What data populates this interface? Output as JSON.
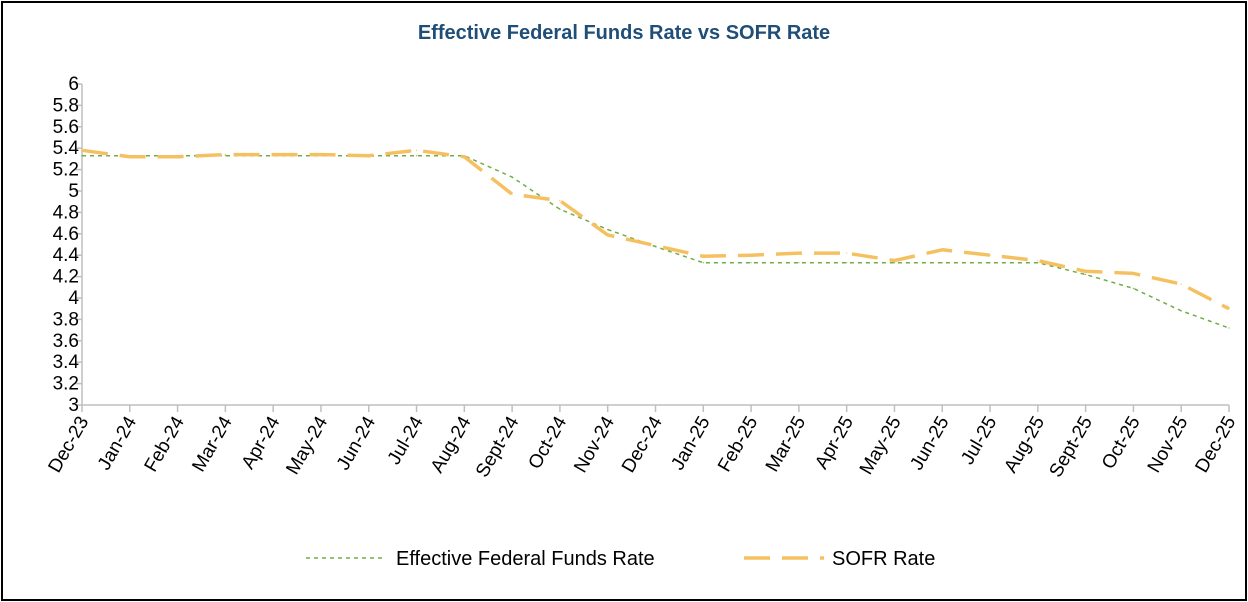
{
  "chart_data": {
    "type": "line",
    "title": "Effective Federal Funds Rate vs SOFR Rate",
    "xlabel": "",
    "ylabel": "",
    "ylim": [
      3,
      6
    ],
    "yticks": [
      "3",
      "3.2",
      "3.4",
      "3.6",
      "3.8",
      "4",
      "4.2",
      "4.4",
      "4.6",
      "4.8",
      "5",
      "5.2",
      "5.4",
      "5.6",
      "5.8",
      "6"
    ],
    "categories": [
      "Dec-23",
      "Jan-24",
      "Feb-24",
      "Mar-24",
      "Apr-24",
      "May-24",
      "Jun-24",
      "Jul-24",
      "Aug-24",
      "Sept-24",
      "Oct-24",
      "Nov-24",
      "Dec-24",
      "Jan-25",
      "Feb-25",
      "Mar-25",
      "Apr-25",
      "May-25",
      "Jun-25",
      "Jul-25",
      "Aug-25",
      "Sept-25",
      "Oct-25",
      "Nov-25",
      "Dec-25"
    ],
    "series": [
      {
        "name": "Effective Federal Funds Rate",
        "color": "#70ad47",
        "style": "dotted",
        "values": [
          5.33,
          5.33,
          5.33,
          5.33,
          5.33,
          5.33,
          5.33,
          5.33,
          5.33,
          5.13,
          4.83,
          4.64,
          4.48,
          4.33,
          4.33,
          4.33,
          4.33,
          4.33,
          4.33,
          4.33,
          4.33,
          4.22,
          4.09,
          3.88,
          3.72
        ]
      },
      {
        "name": "SOFR Rate",
        "color": "#f5c160",
        "style": "dashed",
        "values": [
          5.38,
          5.32,
          5.32,
          5.34,
          5.34,
          5.34,
          5.33,
          5.38,
          5.32,
          4.97,
          4.91,
          4.59,
          4.49,
          4.39,
          4.4,
          4.42,
          4.42,
          4.35,
          4.45,
          4.4,
          4.35,
          4.25,
          4.23,
          4.13,
          3.9
        ]
      }
    ],
    "grid": false,
    "legend": "bottom-center"
  }
}
